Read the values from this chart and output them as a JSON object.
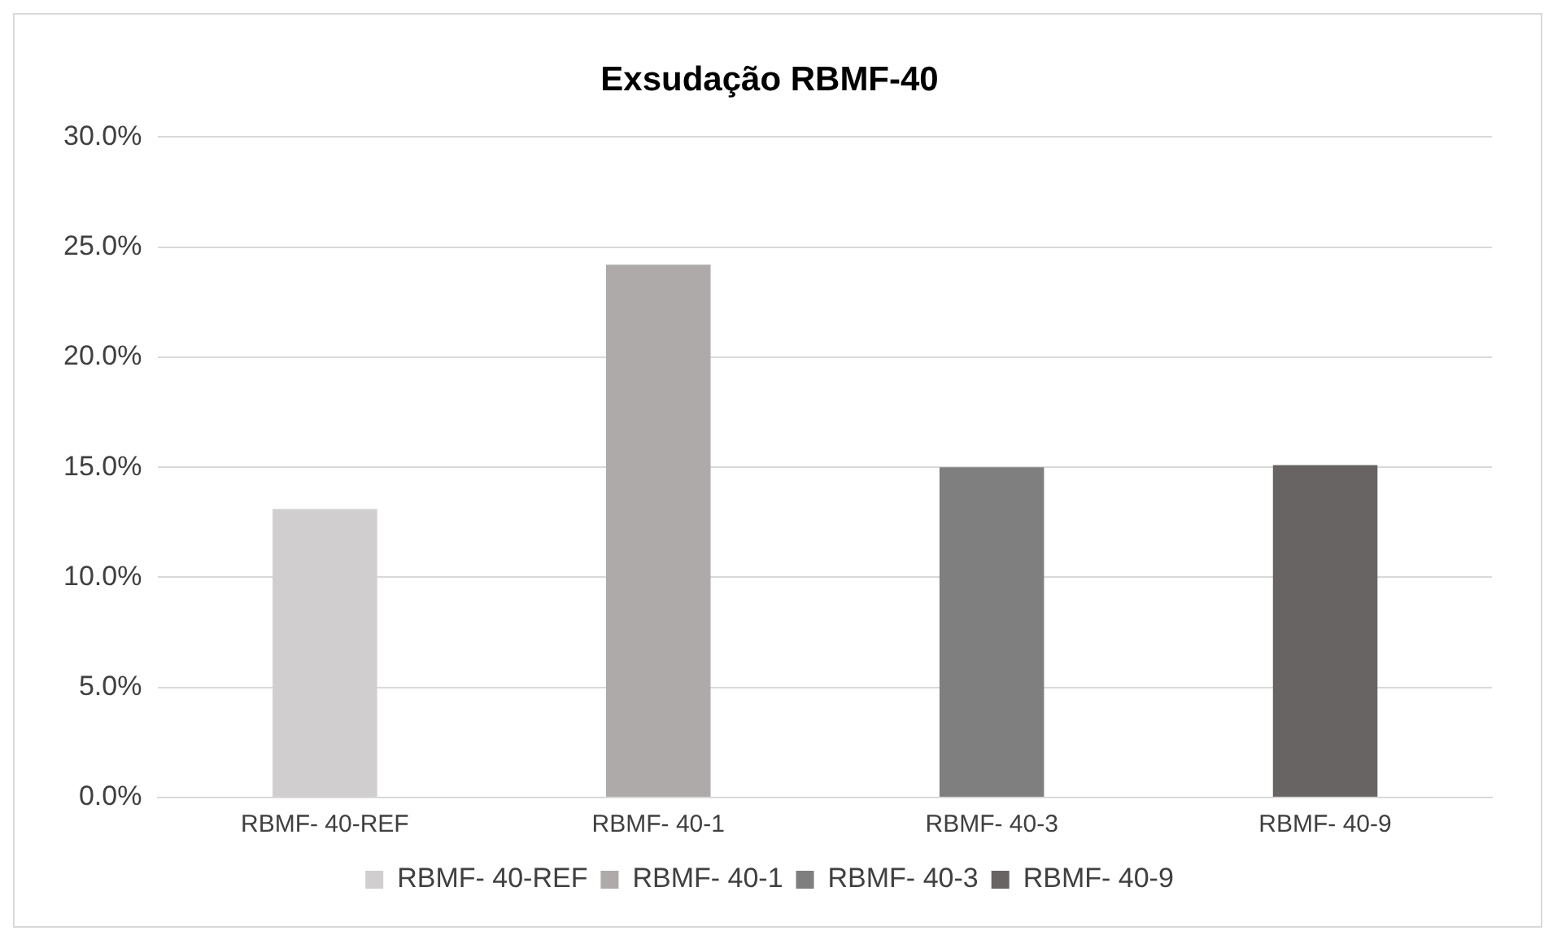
{
  "chart_data": {
    "type": "bar",
    "title": "Exsudação RBMF-40",
    "categories": [
      "RBMF- 40-REF",
      "RBMF- 40-1",
      "RBMF- 40-3",
      "RBMF- 40-9"
    ],
    "series": [
      {
        "name": "RBMF- 40-REF",
        "color": "#d0cece",
        "values": [
          13.1,
          null,
          null,
          null
        ]
      },
      {
        "name": "RBMF- 40-1",
        "color": "#aeaaaa",
        "values": [
          null,
          24.2,
          null,
          null
        ]
      },
      {
        "name": "RBMF- 40-3",
        "color": "#7f7f7f",
        "values": [
          null,
          null,
          15.0,
          null
        ]
      },
      {
        "name": "RBMF- 40-9",
        "color": "#686464",
        "values": [
          null,
          null,
          null,
          15.1
        ]
      }
    ],
    "ylim": [
      0,
      30
    ],
    "yticks": [
      {
        "value": 0,
        "label": "0.0%"
      },
      {
        "value": 5,
        "label": "5.0%"
      },
      {
        "value": 10,
        "label": "10.0%"
      },
      {
        "value": 15,
        "label": "15.0%"
      },
      {
        "value": 20,
        "label": "20.0%"
      },
      {
        "value": 25,
        "label": "25.0%"
      },
      {
        "value": 30,
        "label": "30.0%"
      }
    ],
    "grid": "y",
    "legend": "bottom"
  }
}
